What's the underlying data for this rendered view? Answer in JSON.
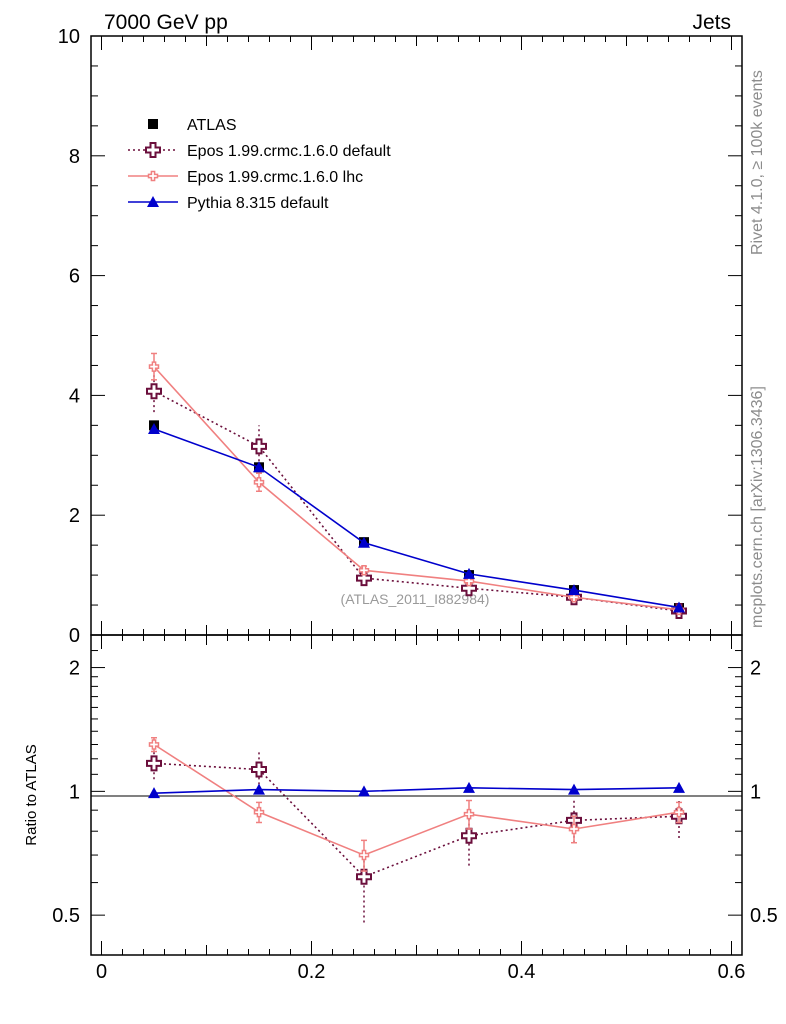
{
  "header": {
    "left": "7000 GeV pp",
    "right": "Jets"
  },
  "side_labels": {
    "rivet": "Rivet 4.1.0, ≥ 100k events",
    "mcplots": "mcplots.cern.ch [arXiv:1306.3436]"
  },
  "watermark": "(ATLAS_2011_I882984)",
  "legend": [
    {
      "label": "ATLAS",
      "marker": "square",
      "color": "#000000"
    },
    {
      "label": "Epos 1.99.crmc.1.6.0 default",
      "marker": "open-cross",
      "color": "#6b0f3c"
    },
    {
      "label": "Epos 1.99.crmc.1.6.0 lhc",
      "marker": "small-cross",
      "color": "#f08080"
    },
    {
      "label": "Pythia 8.315 default",
      "marker": "triangle",
      "color": "#0000cc"
    }
  ],
  "chart_data": [
    {
      "type": "line",
      "panel": "main",
      "xlim": [
        -0.01,
        0.61
      ],
      "ylim": [
        0,
        10
      ],
      "yticks": [
        0,
        2,
        4,
        6,
        8,
        10
      ],
      "ytick_labels": [
        "0",
        "2",
        "4",
        "6",
        "8",
        "10"
      ],
      "x": [
        0.05,
        0.15,
        0.25,
        0.35,
        0.45,
        0.55
      ],
      "series": [
        {
          "name": "ATLAS",
          "color": "#000000",
          "values": [
            3.5,
            2.8,
            1.55,
            1.0,
            0.75,
            0.45
          ]
        },
        {
          "name": "Epos 1.99.crmc.1.6.0 default",
          "color": "#6b0f3c",
          "values": [
            4.07,
            3.15,
            0.95,
            0.78,
            0.63,
            0.4
          ],
          "err_lo": [
            0.35,
            0.25,
            0.12,
            0.12,
            0.08,
            0.05
          ],
          "err_hi": [
            0.35,
            0.35,
            0.12,
            0.12,
            0.08,
            0.05
          ]
        },
        {
          "name": "Epos 1.99.crmc.1.6.0 lhc",
          "color": "#f08080",
          "values": [
            4.48,
            2.55,
            1.08,
            0.9,
            0.63,
            0.42
          ],
          "err_lo": [
            0.22,
            0.15,
            0.07,
            0.05,
            0.05,
            0.04
          ],
          "err_hi": [
            0.22,
            0.15,
            0.07,
            0.05,
            0.05,
            0.04
          ]
        },
        {
          "name": "Pythia 8.315 default",
          "color": "#0000cc",
          "values": [
            3.44,
            2.8,
            1.54,
            1.02,
            0.75,
            0.46
          ]
        }
      ]
    },
    {
      "type": "line",
      "panel": "ratio",
      "xlim": [
        -0.01,
        0.61
      ],
      "ylim": [
        0.4,
        2.4
      ],
      "ylabel": "Ratio to ATLAS",
      "yscale": "log",
      "yticks": [
        0.5,
        1,
        2
      ],
      "ytick_labels": [
        "0.5",
        "1",
        "2"
      ],
      "xticks": [
        0,
        0.2,
        0.4,
        0.6
      ],
      "xtick_labels": [
        "0",
        "0.2",
        "0.4",
        "0.6"
      ],
      "x": [
        0.05,
        0.15,
        0.25,
        0.35,
        0.45,
        0.55
      ],
      "series": [
        {
          "name": "Epos 1.99.crmc.1.6.0 default",
          "color": "#6b0f3c",
          "values": [
            1.17,
            1.13,
            0.62,
            0.78,
            0.85,
            0.87
          ],
          "err_lo": [
            0.1,
            0.09,
            0.14,
            0.12,
            0.1,
            0.1
          ],
          "err_hi": [
            0.1,
            0.12,
            0.1,
            0.1,
            0.1,
            0.08
          ]
        },
        {
          "name": "Epos 1.99.crmc.1.6.0 lhc",
          "color": "#f08080",
          "values": [
            1.3,
            0.89,
            0.7,
            0.88,
            0.81,
            0.89
          ],
          "err_lo": [
            0.05,
            0.05,
            0.06,
            0.07,
            0.06,
            0.05
          ],
          "err_hi": [
            0.05,
            0.05,
            0.06,
            0.07,
            0.06,
            0.05
          ]
        },
        {
          "name": "Pythia 8.315 default",
          "color": "#0000cc",
          "values": [
            0.99,
            1.01,
            1.0,
            1.02,
            1.01,
            1.02
          ]
        }
      ]
    }
  ]
}
